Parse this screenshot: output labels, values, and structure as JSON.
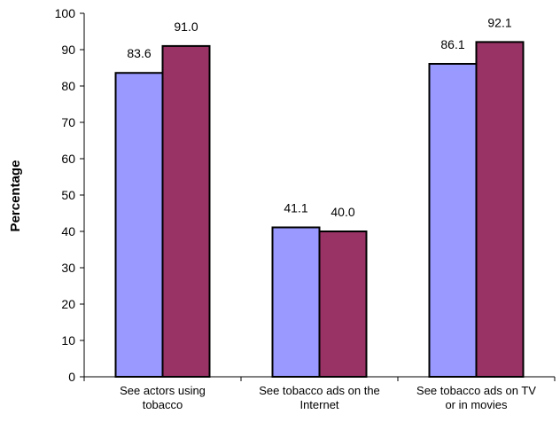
{
  "chart_data": {
    "type": "bar",
    "title": "",
    "xlabel": "",
    "ylabel": "Percentage",
    "ylim": [
      0,
      100
    ],
    "y_ticks": [
      0,
      10,
      20,
      30,
      40,
      50,
      60,
      70,
      80,
      90,
      100
    ],
    "grid": false,
    "legend": "none",
    "categories": [
      [
        "See actors using",
        "tobacco"
      ],
      [
        "See tobacco ads on the",
        "Internet"
      ],
      [
        "See tobacco ads on TV",
        "or in movies"
      ]
    ],
    "series": [
      {
        "color": "#9999ff",
        "values": [
          83.6,
          41.1,
          86.1
        ],
        "labels": [
          "83.6",
          "41.1",
          "86.1"
        ]
      },
      {
        "color": "#993366",
        "values": [
          91.0,
          40.0,
          92.1
        ],
        "labels": [
          "91.0",
          "40.0",
          "92.1"
        ]
      }
    ]
  }
}
